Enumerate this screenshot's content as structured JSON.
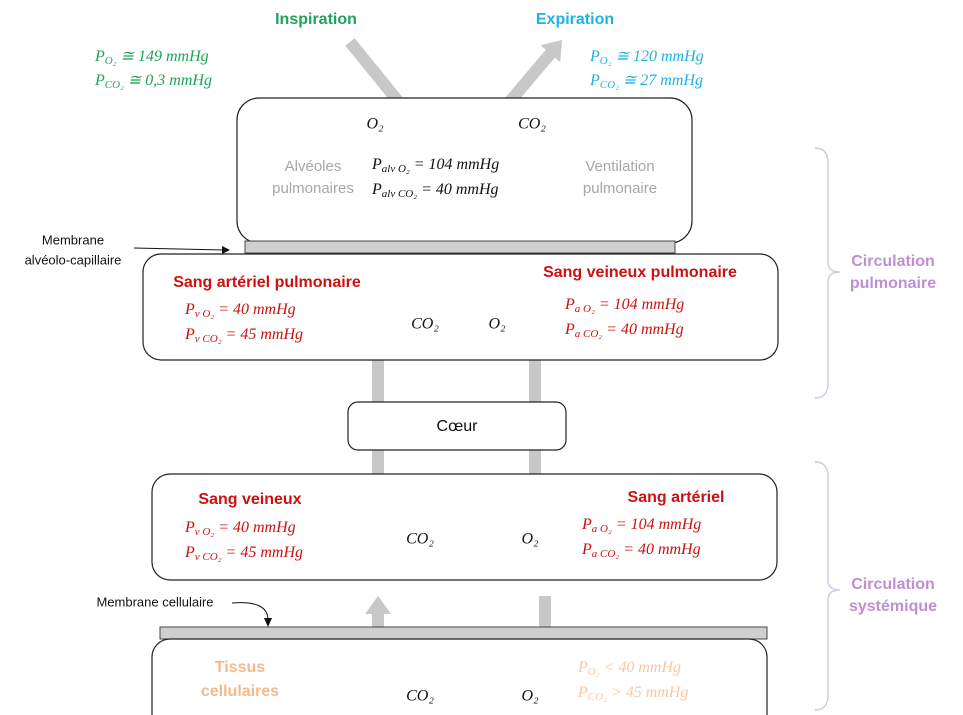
{
  "inspiration": {
    "title": "Inspiration",
    "lines": [
      {
        "sym": "P",
        "sub": "O₂",
        "rel": " ≅ 149 mmHg"
      },
      {
        "sym": "P",
        "sub": "CO₂",
        "rel": " ≅ 0,3 mmHg"
      }
    ]
  },
  "expiration": {
    "title": "Expiration",
    "lines": [
      {
        "sym": "P",
        "sub": "O₂",
        "rel": " ≅ 120 mmHg"
      },
      {
        "sym": "P",
        "sub": "CO₂",
        "rel": " ≅ 27 mmHg"
      }
    ]
  },
  "alveoli": {
    "gas_in": "O₂",
    "gas_out": "CO₂",
    "left_label": [
      "Alvéoles",
      "pulmonaires"
    ],
    "right_label": [
      "Ventilation",
      "pulmonaire"
    ],
    "lines": [
      {
        "sym": "P",
        "sub": "alv O₂",
        "rel": " = 104 mmHg"
      },
      {
        "sym": "P",
        "sub": "alv CO₂",
        "rel": " = 40 mmHg"
      }
    ]
  },
  "membrane_alveolar": [
    "Membrane",
    "alvéolo-capillaire"
  ],
  "pulmonary": {
    "left_title": "Sang artériel pulmonaire",
    "left_lines": [
      {
        "sym": "P",
        "sub": "v O₂",
        "rel": " = 40 mmHg"
      },
      {
        "sym": "P",
        "sub": "v CO₂",
        "rel": " = 45 mmHg"
      }
    ],
    "gas_left": "CO₂",
    "gas_right": "O₂",
    "right_title": "Sang veineux pulmonaire",
    "right_lines": [
      {
        "sym": "P",
        "sub": "a O₂",
        "rel": " = 104 mmHg"
      },
      {
        "sym": "P",
        "sub": "a CO₂",
        "rel": " = 40 mmHg"
      }
    ]
  },
  "heart": "Cœur",
  "systemic": {
    "left_title": "Sang veineux",
    "left_lines": [
      {
        "sym": "P",
        "sub": "v O₂",
        "rel": " = 40 mmHg"
      },
      {
        "sym": "P",
        "sub": "v CO₂",
        "rel": " = 45 mmHg"
      }
    ],
    "gas_left": "CO₂",
    "gas_right": "O₂",
    "right_title": "Sang artériel",
    "right_lines": [
      {
        "sym": "P",
        "sub": "a O₂",
        "rel": " = 104 mmHg"
      },
      {
        "sym": "P",
        "sub": "a CO₂",
        "rel": " = 40 mmHg"
      }
    ]
  },
  "membrane_cell": "Membrane cellulaire",
  "tissue": {
    "label": [
      "Tissus",
      "cellulaires"
    ],
    "gas_left": "CO₂",
    "gas_right": "O₂",
    "lines": [
      {
        "sym": "P",
        "sub": "O₂",
        "rel": " < 40 mmHg"
      },
      {
        "sym": "P",
        "sub": "CO₂",
        "rel": " > 45 mmHg"
      }
    ]
  },
  "circulation_pulmonary": [
    "Circulation",
    "pulmonaire"
  ],
  "circulation_systemic": [
    "Circulation",
    "systémique"
  ]
}
